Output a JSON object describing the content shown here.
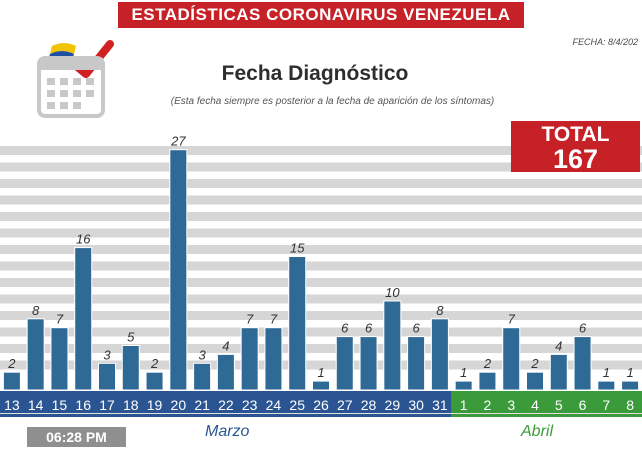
{
  "header": {
    "banner": "ESTADÍSTICAS CORONAVIRUS VENEZUELA",
    "date_label": "FECHA: 8/4/202"
  },
  "title": "Fecha Diagnóstico",
  "subtitle": "(Esta fecha siempre es posterior a la fecha de aparición de los síntomas)",
  "total": {
    "label": "TOTAL",
    "value": "167"
  },
  "clock": "06:28 PM",
  "months": {
    "march": "Marzo",
    "april": "Abril"
  },
  "colors": {
    "bar": "#2f6a97",
    "march_axis": "#2a5592",
    "april_axis": "#3b9b3b",
    "banner": "#c62127",
    "stripe": "#d6d6d6"
  },
  "icons": {
    "calendar": "calendar-icon",
    "flag": "flag-check-icon"
  },
  "chart_data": {
    "type": "bar",
    "title": "Fecha Diagnóstico",
    "categories": [
      "13",
      "14",
      "15",
      "16",
      "17",
      "18",
      "19",
      "20",
      "21",
      "22",
      "23",
      "24",
      "25",
      "26",
      "27",
      "28",
      "29",
      "30",
      "31",
      "1",
      "2",
      "3",
      "4",
      "5",
      "6",
      "7",
      "8"
    ],
    "values": [
      2,
      8,
      7,
      16,
      3,
      5,
      2,
      27,
      3,
      4,
      7,
      7,
      15,
      1,
      6,
      6,
      10,
      6,
      8,
      1,
      2,
      7,
      2,
      4,
      6,
      1,
      1
    ],
    "groups": [
      {
        "name": "Marzo",
        "start": 0,
        "end": 18
      },
      {
        "name": "Abril",
        "start": 19,
        "end": 26
      }
    ],
    "ylim": [
      0,
      27
    ],
    "xlabel": "",
    "ylabel": "",
    "grid": true
  }
}
